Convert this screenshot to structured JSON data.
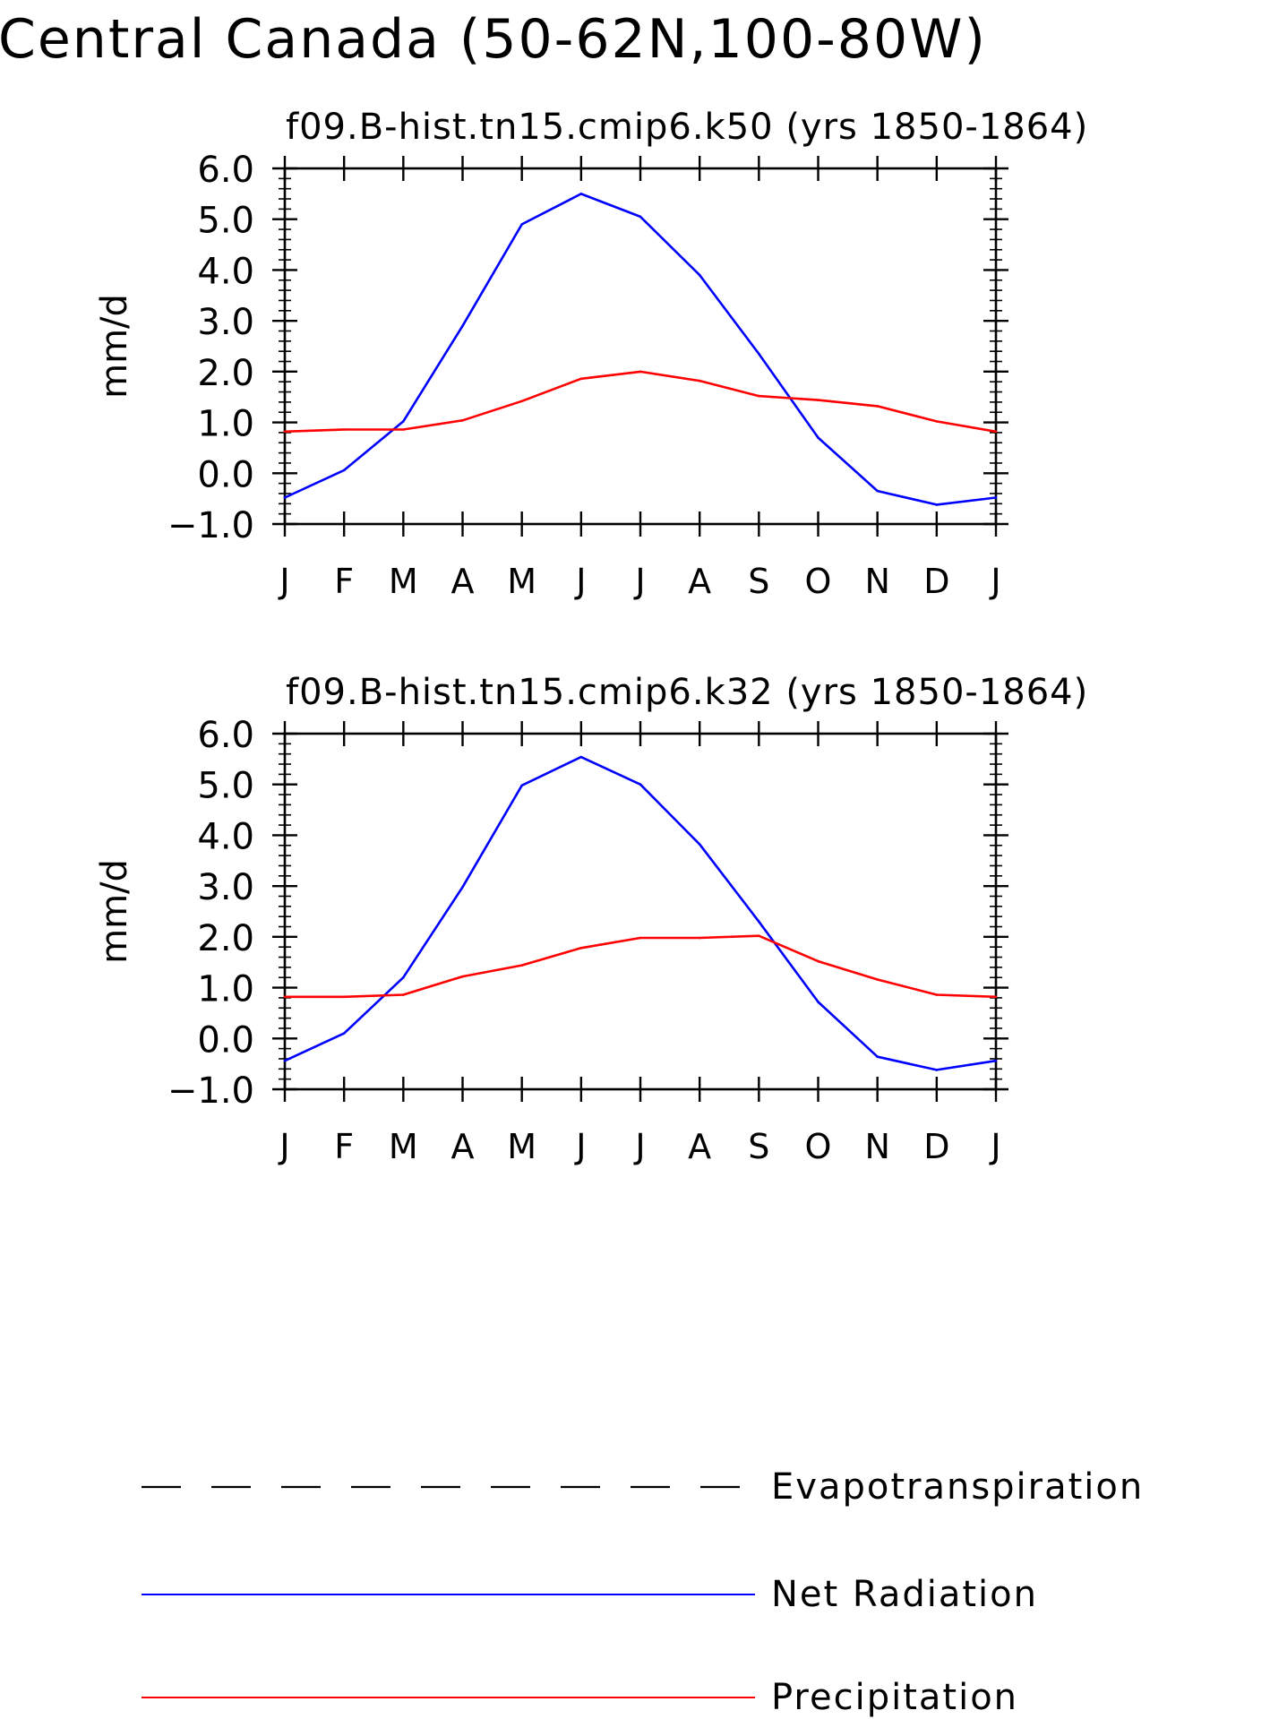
{
  "figure": {
    "main_title": "Central Canada (50-62N,100-80W)"
  },
  "legend": [
    {
      "label": "Evapotranspiration",
      "color": "#000000",
      "style": "dashed"
    },
    {
      "label": "Net Radiation",
      "color": "#0000ff",
      "style": "solid"
    },
    {
      "label": "Precipitation",
      "color": "#ff0000",
      "style": "solid"
    }
  ],
  "chart_data": [
    {
      "type": "line",
      "title": "f09.B-hist.tn15.cmip6.k50 (yrs 1850-1864)",
      "ylabel": "mm/d",
      "xlabel": "",
      "categories": [
        "J",
        "F",
        "M",
        "A",
        "M",
        "J",
        "J",
        "A",
        "S",
        "O",
        "N",
        "D",
        "J"
      ],
      "ylim": [
        -1.0,
        6.0
      ],
      "yticks": [
        "-1.0",
        "0.0",
        "1.0",
        "2.0",
        "3.0",
        "4.0",
        "5.0",
        "6.0"
      ],
      "grid": false,
      "series": [
        {
          "name": "Net Radiation",
          "color": "#0000ff",
          "values": [
            -0.48,
            0.06,
            1.02,
            2.9,
            4.9,
            5.5,
            5.05,
            3.9,
            2.35,
            0.7,
            -0.35,
            -0.62,
            -0.48
          ]
        },
        {
          "name": "Precipitation",
          "color": "#ff0000",
          "values": [
            0.82,
            0.86,
            0.86,
            1.04,
            1.42,
            1.86,
            2.0,
            1.82,
            1.52,
            1.44,
            1.32,
            1.02,
            0.82
          ]
        }
      ]
    },
    {
      "type": "line",
      "title": "f09.B-hist.tn15.cmip6.k32 (yrs 1850-1864)",
      "ylabel": "mm/d",
      "xlabel": "",
      "categories": [
        "J",
        "F",
        "M",
        "A",
        "M",
        "J",
        "J",
        "A",
        "S",
        "O",
        "N",
        "D",
        "J"
      ],
      "ylim": [
        -1.0,
        6.0
      ],
      "yticks": [
        "-1.0",
        "0.0",
        "1.0",
        "2.0",
        "3.0",
        "4.0",
        "5.0",
        "6.0"
      ],
      "grid": false,
      "series": [
        {
          "name": "Net Radiation",
          "color": "#0000ff",
          "values": [
            -0.44,
            0.1,
            1.2,
            2.98,
            4.98,
            5.54,
            5.0,
            3.82,
            2.3,
            0.72,
            -0.36,
            -0.62,
            -0.44
          ]
        },
        {
          "name": "Precipitation",
          "color": "#ff0000",
          "values": [
            0.82,
            0.82,
            0.86,
            1.22,
            1.44,
            1.78,
            1.98,
            1.98,
            2.02,
            1.52,
            1.16,
            0.86,
            0.82
          ]
        }
      ]
    }
  ]
}
